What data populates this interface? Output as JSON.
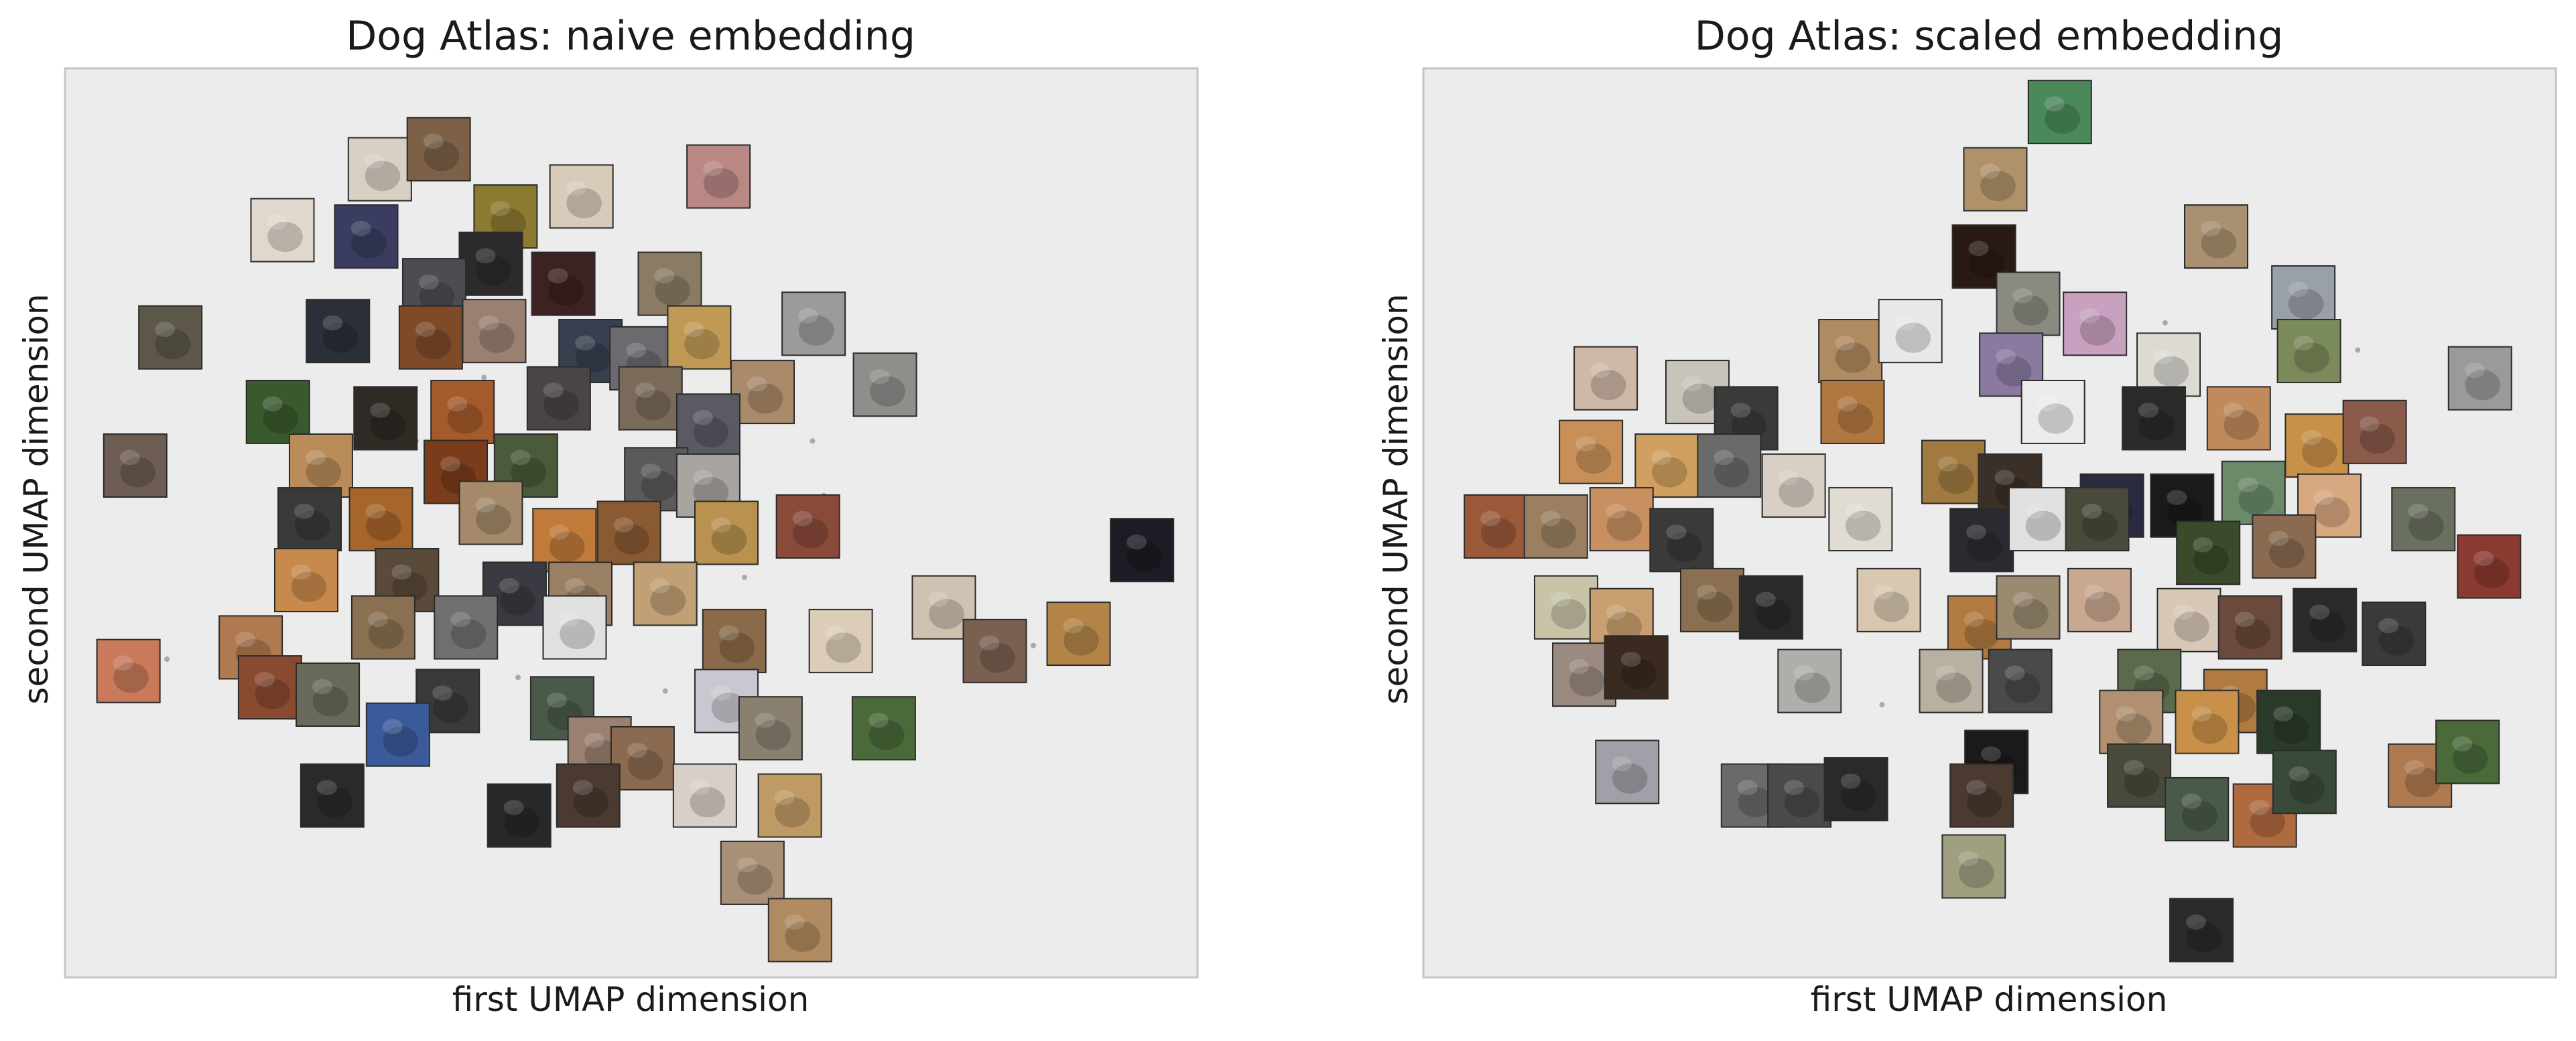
{
  "chart_data": [
    {
      "type": "scatter",
      "title": "Dog Atlas: naive embedding",
      "xlabel": "first UMAP dimension",
      "ylabel": "second UMAP dimension",
      "xlim": [
        0,
        100
      ],
      "ylim": [
        0,
        100
      ],
      "grid": false,
      "ticks": false,
      "colors": {
        "axes_bg": "#ececec",
        "axes_edge": "#c4c4c4",
        "stray_points": "#a9a9a9"
      },
      "points": [
        {
          "x": 27.8,
          "y": 88.9,
          "c": "#d9d0c4"
        },
        {
          "x": 33.0,
          "y": 91.1,
          "c": "#7c6148"
        },
        {
          "x": 26.6,
          "y": 81.5,
          "c": "#3a3d60"
        },
        {
          "x": 38.9,
          "y": 83.7,
          "c": "#8b7a2f"
        },
        {
          "x": 45.6,
          "y": 85.9,
          "c": "#d8cbb9"
        },
        {
          "x": 57.7,
          "y": 88.1,
          "c": "#b98784"
        },
        {
          "x": 19.2,
          "y": 82.2,
          "c": "#e0d8cd"
        },
        {
          "x": 37.6,
          "y": 78.5,
          "c": "#2c2a2a"
        },
        {
          "x": 44.0,
          "y": 76.3,
          "c": "#3c2220"
        },
        {
          "x": 53.4,
          "y": 76.3,
          "c": "#8a7c63"
        },
        {
          "x": 32.6,
          "y": 75.6,
          "c": "#4b4d52"
        },
        {
          "x": 9.3,
          "y": 70.4,
          "c": "#5c5749"
        },
        {
          "x": 24.1,
          "y": 71.1,
          "c": "#2b3038"
        },
        {
          "x": 32.3,
          "y": 70.4,
          "c": "#7e4a28"
        },
        {
          "x": 37.9,
          "y": 71.1,
          "c": "#9a8072"
        },
        {
          "x": 46.4,
          "y": 68.9,
          "c": "#384050"
        },
        {
          "x": 50.9,
          "y": 68.1,
          "c": "#6c6a6e"
        },
        {
          "x": 56.0,
          "y": 70.4,
          "c": "#c09a55"
        },
        {
          "x": 66.1,
          "y": 71.9,
          "c": "#9b9b9b"
        },
        {
          "x": 61.6,
          "y": 64.4,
          "c": "#a98a6a"
        },
        {
          "x": 72.4,
          "y": 65.2,
          "c": "#8d8f8b"
        },
        {
          "x": 18.8,
          "y": 62.2,
          "c": "#3a5a2e"
        },
        {
          "x": 28.3,
          "y": 61.5,
          "c": "#2e2a24"
        },
        {
          "x": 35.1,
          "y": 62.2,
          "c": "#a45a2a"
        },
        {
          "x": 43.6,
          "y": 63.7,
          "c": "#4a4544"
        },
        {
          "x": 51.7,
          "y": 63.7,
          "c": "#7a6a5a"
        },
        {
          "x": 56.8,
          "y": 60.7,
          "c": "#5a5a63"
        },
        {
          "x": 6.2,
          "y": 56.3,
          "c": "#6d5d53"
        },
        {
          "x": 22.6,
          "y": 56.3,
          "c": "#b98c5a"
        },
        {
          "x": 34.5,
          "y": 55.6,
          "c": "#7b3c1c"
        },
        {
          "x": 40.7,
          "y": 56.3,
          "c": "#4a5a3a"
        },
        {
          "x": 52.2,
          "y": 54.8,
          "c": "#5a5a5a"
        },
        {
          "x": 56.8,
          "y": 54.1,
          "c": "#a8a4a0"
        },
        {
          "x": 21.6,
          "y": 50.4,
          "c": "#3a3a3a"
        },
        {
          "x": 27.9,
          "y": 50.4,
          "c": "#a6652a"
        },
        {
          "x": 37.6,
          "y": 51.1,
          "c": "#a48a6a"
        },
        {
          "x": 44.1,
          "y": 48.1,
          "c": "#c07a3a"
        },
        {
          "x": 49.8,
          "y": 48.9,
          "c": "#8a5a32"
        },
        {
          "x": 58.4,
          "y": 48.9,
          "c": "#b8924e"
        },
        {
          "x": 65.6,
          "y": 49.6,
          "c": "#8a4a3a"
        },
        {
          "x": 95.1,
          "y": 47.0,
          "c": "#1c1c24"
        },
        {
          "x": 21.3,
          "y": 43.7,
          "c": "#c88a4c"
        },
        {
          "x": 30.2,
          "y": 43.7,
          "c": "#5a4a3a"
        },
        {
          "x": 39.7,
          "y": 42.2,
          "c": "#3a3a42"
        },
        {
          "x": 45.5,
          "y": 42.2,
          "c": "#9a8064"
        },
        {
          "x": 53.0,
          "y": 42.2,
          "c": "#c0a074"
        },
        {
          "x": 16.4,
          "y": 36.3,
          "c": "#b07a50"
        },
        {
          "x": 28.1,
          "y": 38.5,
          "c": "#8a7050"
        },
        {
          "x": 35.4,
          "y": 38.5,
          "c": "#707070"
        },
        {
          "x": 45.0,
          "y": 38.5,
          "c": "#e0e0e0"
        },
        {
          "x": 59.1,
          "y": 37.0,
          "c": "#8a6a4a"
        },
        {
          "x": 68.5,
          "y": 37.0,
          "c": "#dccdb8"
        },
        {
          "x": 77.6,
          "y": 40.7,
          "c": "#cfc2b0"
        },
        {
          "x": 82.1,
          "y": 35.9,
          "c": "#7a6050"
        },
        {
          "x": 89.5,
          "y": 37.8,
          "c": "#b38448"
        },
        {
          "x": 5.6,
          "y": 33.7,
          "c": "#c87a5a"
        },
        {
          "x": 18.1,
          "y": 31.9,
          "c": "#8a4a30"
        },
        {
          "x": 23.2,
          "y": 31.1,
          "c": "#6a6a5a"
        },
        {
          "x": 33.8,
          "y": 30.4,
          "c": "#3a3a3a"
        },
        {
          "x": 43.9,
          "y": 29.6,
          "c": "#4a5a4a"
        },
        {
          "x": 58.4,
          "y": 30.4,
          "c": "#c8c8d0"
        },
        {
          "x": 62.3,
          "y": 27.4,
          "c": "#8a8070"
        },
        {
          "x": 72.3,
          "y": 27.4,
          "c": "#4a6a3a"
        },
        {
          "x": 29.4,
          "y": 26.7,
          "c": "#3a5a9a"
        },
        {
          "x": 47.2,
          "y": 25.2,
          "c": "#9a8070"
        },
        {
          "x": 51.0,
          "y": 24.1,
          "c": "#8a6a50"
        },
        {
          "x": 23.6,
          "y": 20.0,
          "c": "#2a2a2a"
        },
        {
          "x": 40.1,
          "y": 17.8,
          "c": "#282828"
        },
        {
          "x": 46.2,
          "y": 20.0,
          "c": "#4a3a30"
        },
        {
          "x": 56.5,
          "y": 20.0,
          "c": "#d8d0c8"
        },
        {
          "x": 64.0,
          "y": 18.9,
          "c": "#c09a64"
        },
        {
          "x": 60.7,
          "y": 11.5,
          "c": "#a89078"
        },
        {
          "x": 64.9,
          "y": 5.2,
          "c": "#b08a60"
        }
      ],
      "stray_points": [
        {
          "x": 37.0,
          "y": 66.0
        },
        {
          "x": 31.0,
          "y": 59.0
        },
        {
          "x": 66.0,
          "y": 59.0
        },
        {
          "x": 9.0,
          "y": 35.0
        },
        {
          "x": 60.0,
          "y": 44.0
        },
        {
          "x": 40.0,
          "y": 33.0
        },
        {
          "x": 53.0,
          "y": 31.5
        },
        {
          "x": 67.0,
          "y": 53.0
        },
        {
          "x": 85.5,
          "y": 36.5
        }
      ]
    },
    {
      "type": "scatter",
      "title": "Dog Atlas: scaled embedding",
      "xlabel": "first UMAP dimension",
      "ylabel": "second UMAP dimension",
      "xlim": [
        0,
        100
      ],
      "ylim": [
        0,
        100
      ],
      "grid": false,
      "ticks": false,
      "colors": {
        "axes_bg": "#ececec",
        "axes_edge": "#c4c4c4",
        "stray_points": "#a9a9a9"
      },
      "points": [
        {
          "x": 56.2,
          "y": 95.2,
          "c": "#4a8a5a"
        },
        {
          "x": 50.5,
          "y": 87.8,
          "c": "#b0926a"
        },
        {
          "x": 49.5,
          "y": 79.3,
          "c": "#2a1a14"
        },
        {
          "x": 70.0,
          "y": 81.5,
          "c": "#a89070"
        },
        {
          "x": 53.4,
          "y": 74.1,
          "c": "#8a8a80"
        },
        {
          "x": 77.7,
          "y": 74.8,
          "c": "#9aa0a8"
        },
        {
          "x": 37.7,
          "y": 68.9,
          "c": "#b08a60"
        },
        {
          "x": 43.0,
          "y": 71.1,
          "c": "#e8e8e8"
        },
        {
          "x": 51.9,
          "y": 67.4,
          "c": "#8a7aa0"
        },
        {
          "x": 59.3,
          "y": 71.9,
          "c": "#c8a0c0"
        },
        {
          "x": 65.8,
          "y": 67.4,
          "c": "#dcdad2"
        },
        {
          "x": 78.2,
          "y": 68.9,
          "c": "#7a8a5a"
        },
        {
          "x": 93.3,
          "y": 65.9,
          "c": "#9a9a9a"
        },
        {
          "x": 16.1,
          "y": 65.9,
          "c": "#d0b8a8"
        },
        {
          "x": 24.2,
          "y": 64.4,
          "c": "#c8c4bc"
        },
        {
          "x": 28.5,
          "y": 61.5,
          "c": "#3a3a3a"
        },
        {
          "x": 37.9,
          "y": 62.2,
          "c": "#b07840"
        },
        {
          "x": 55.6,
          "y": 62.2,
          "c": "#ececec"
        },
        {
          "x": 64.5,
          "y": 61.5,
          "c": "#2a2a2a"
        },
        {
          "x": 72.0,
          "y": 61.5,
          "c": "#c08a5a"
        },
        {
          "x": 78.9,
          "y": 58.5,
          "c": "#c89048"
        },
        {
          "x": 84.0,
          "y": 60.0,
          "c": "#8a5a4a"
        },
        {
          "x": 14.8,
          "y": 57.8,
          "c": "#c89058"
        },
        {
          "x": 21.5,
          "y": 56.3,
          "c": "#d0a060"
        },
        {
          "x": 27.0,
          "y": 56.3,
          "c": "#6a6a6a"
        },
        {
          "x": 32.7,
          "y": 54.1,
          "c": "#d8d0c4"
        },
        {
          "x": 46.8,
          "y": 55.6,
          "c": "#a07a40"
        },
        {
          "x": 51.8,
          "y": 54.1,
          "c": "#3a3028"
        },
        {
          "x": 60.8,
          "y": 51.9,
          "c": "#2a2a40"
        },
        {
          "x": 67.0,
          "y": 51.9,
          "c": "#1a1a1a"
        },
        {
          "x": 73.3,
          "y": 53.3,
          "c": "#6a8a6a"
        },
        {
          "x": 80.0,
          "y": 51.9,
          "c": "#d8a880"
        },
        {
          "x": 88.3,
          "y": 50.4,
          "c": "#6a7060"
        },
        {
          "x": 6.4,
          "y": 49.6,
          "c": "#9a5a3a"
        },
        {
          "x": 11.7,
          "y": 49.6,
          "c": "#9a8060"
        },
        {
          "x": 17.5,
          "y": 50.4,
          "c": "#c89060"
        },
        {
          "x": 22.8,
          "y": 48.1,
          "c": "#3a3a3a"
        },
        {
          "x": 38.6,
          "y": 50.4,
          "c": "#e0dcd4"
        },
        {
          "x": 49.3,
          "y": 48.1,
          "c": "#2a2a30"
        },
        {
          "x": 54.5,
          "y": 50.4,
          "c": "#e0e0e0"
        },
        {
          "x": 59.5,
          "y": 50.4,
          "c": "#4a4a3a"
        },
        {
          "x": 69.3,
          "y": 46.7,
          "c": "#3a4a2a"
        },
        {
          "x": 76.0,
          "y": 47.4,
          "c": "#8a6a50"
        },
        {
          "x": 94.1,
          "y": 45.2,
          "c": "#8a3a30"
        },
        {
          "x": 12.6,
          "y": 40.7,
          "c": "#c8c4a8"
        },
        {
          "x": 17.5,
          "y": 39.3,
          "c": "#c8a070"
        },
        {
          "x": 25.5,
          "y": 41.5,
          "c": "#8a7050"
        },
        {
          "x": 30.7,
          "y": 40.7,
          "c": "#2a2a2a"
        },
        {
          "x": 41.1,
          "y": 41.5,
          "c": "#d8c8b0"
        },
        {
          "x": 49.1,
          "y": 38.5,
          "c": "#b07a40"
        },
        {
          "x": 53.4,
          "y": 40.7,
          "c": "#9a8a70"
        },
        {
          "x": 59.7,
          "y": 41.5,
          "c": "#c8a890"
        },
        {
          "x": 67.6,
          "y": 39.3,
          "c": "#d8c8b8"
        },
        {
          "x": 73.0,
          "y": 38.5,
          "c": "#6a4a3a"
        },
        {
          "x": 79.6,
          "y": 39.3,
          "c": "#2a2a2a"
        },
        {
          "x": 85.7,
          "y": 37.8,
          "c": "#3a3a3a"
        },
        {
          "x": 14.2,
          "y": 33.3,
          "c": "#9a8a80"
        },
        {
          "x": 18.8,
          "y": 34.1,
          "c": "#3a2a20"
        },
        {
          "x": 34.1,
          "y": 32.6,
          "c": "#aeaeaa"
        },
        {
          "x": 46.6,
          "y": 32.6,
          "c": "#b8b0a0"
        },
        {
          "x": 52.7,
          "y": 32.6,
          "c": "#4a4a4a"
        },
        {
          "x": 64.1,
          "y": 32.6,
          "c": "#5a6a4a"
        },
        {
          "x": 71.7,
          "y": 30.4,
          "c": "#b07a40"
        },
        {
          "x": 76.4,
          "y": 28.1,
          "c": "#2a3a2a"
        },
        {
          "x": 62.5,
          "y": 28.1,
          "c": "#b09070"
        },
        {
          "x": 69.2,
          "y": 28.1,
          "c": "#c89048"
        },
        {
          "x": 18.0,
          "y": 22.6,
          "c": "#a0a0a8"
        },
        {
          "x": 29.1,
          "y": 20.0,
          "c": "#6a6a6a"
        },
        {
          "x": 33.2,
          "y": 20.0,
          "c": "#4a4a4a"
        },
        {
          "x": 38.2,
          "y": 20.7,
          "c": "#2a2a2a"
        },
        {
          "x": 50.6,
          "y": 23.7,
          "c": "#1a1a1a"
        },
        {
          "x": 49.3,
          "y": 20.0,
          "c": "#4a3a30"
        },
        {
          "x": 63.2,
          "y": 22.2,
          "c": "#4a4a3a"
        },
        {
          "x": 68.3,
          "y": 18.5,
          "c": "#4a5a4a"
        },
        {
          "x": 74.3,
          "y": 17.8,
          "c": "#b06a40"
        },
        {
          "x": 77.8,
          "y": 21.5,
          "c": "#3a4a3a"
        },
        {
          "x": 88.0,
          "y": 22.2,
          "c": "#b07a50"
        },
        {
          "x": 92.2,
          "y": 24.8,
          "c": "#4a6a3a"
        },
        {
          "x": 48.6,
          "y": 12.2,
          "c": "#a0a080"
        },
        {
          "x": 68.7,
          "y": 5.2,
          "c": "#2a2a2a"
        }
      ],
      "stray_points": [
        {
          "x": 27.0,
          "y": 58.5
        },
        {
          "x": 65.5,
          "y": 72.0
        },
        {
          "x": 62.0,
          "y": 39.0
        },
        {
          "x": 40.5,
          "y": 30.0
        },
        {
          "x": 82.5,
          "y": 69.0
        }
      ]
    }
  ]
}
